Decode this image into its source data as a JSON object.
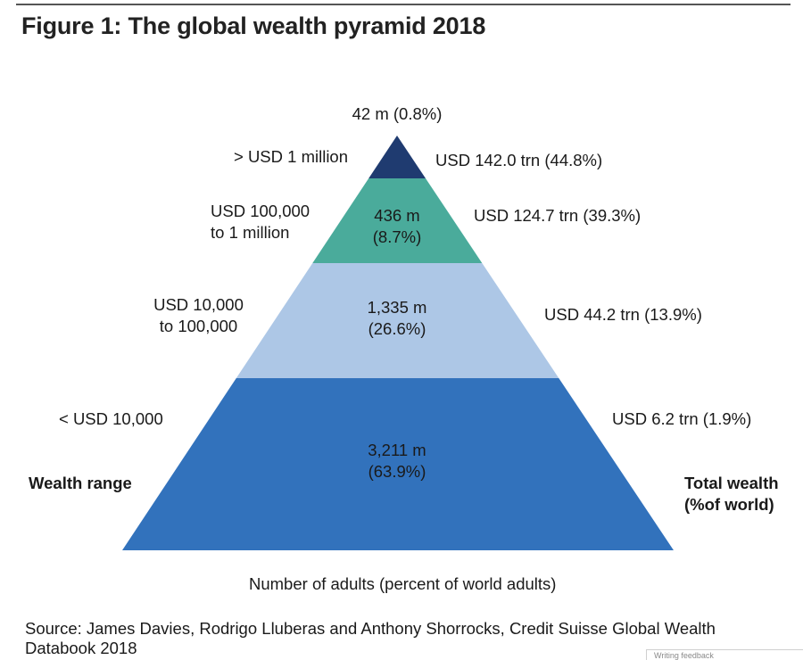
{
  "title": "Figure 1: The global wealth pyramid 2018",
  "source": "Source: James Davies, Rodrigo Lluberas and Anthony Shorrocks, Credit Suisse Global Wealth Databook 2018",
  "corner_text": "Writing feedback",
  "chart_data": {
    "type": "pyramid",
    "title": "Figure 1: The global wealth pyramid 2018",
    "left_axis_label": "Wealth range",
    "right_axis_label": [
      "Total wealth",
      "(%of world)"
    ],
    "bottom_label": "Number of adults (percent of world adults)",
    "tiers": [
      {
        "wealth_range": [
          "> USD 1 million"
        ],
        "adults_millions": 42,
        "adults_pct": 0.8,
        "adults_label": [
          "42 m (0.8%)"
        ],
        "total_wealth_trn": 142.0,
        "wealth_pct": 44.8,
        "wealth_label": "USD 142.0 trn (44.8%)",
        "color": "#1f3b70"
      },
      {
        "wealth_range": [
          "USD 100,000",
          "to 1 million"
        ],
        "adults_millions": 436,
        "adults_pct": 8.7,
        "adults_label": [
          "436 m",
          "(8.7%)"
        ],
        "total_wealth_trn": 124.7,
        "wealth_pct": 39.3,
        "wealth_label": "USD 124.7 trn (39.3%)",
        "color": "#4aab9b"
      },
      {
        "wealth_range": [
          "USD 10,000",
          "to 100,000"
        ],
        "adults_millions": 1335,
        "adults_pct": 26.6,
        "adults_label": [
          "1,335 m",
          "(26.6%)"
        ],
        "total_wealth_trn": 44.2,
        "wealth_pct": 13.9,
        "wealth_label": "USD 44.2 trn (13.9%)",
        "color": "#adc7e6"
      },
      {
        "wealth_range": [
          "< USD 10,000"
        ],
        "adults_millions": 3211,
        "adults_pct": 63.9,
        "adults_label": [
          "3,211 m",
          "(63.9%)"
        ],
        "total_wealth_trn": 6.2,
        "wealth_pct": 1.9,
        "wealth_label": "USD 6.2 trn (1.9%)",
        "color": "#3272bc"
      }
    ]
  }
}
